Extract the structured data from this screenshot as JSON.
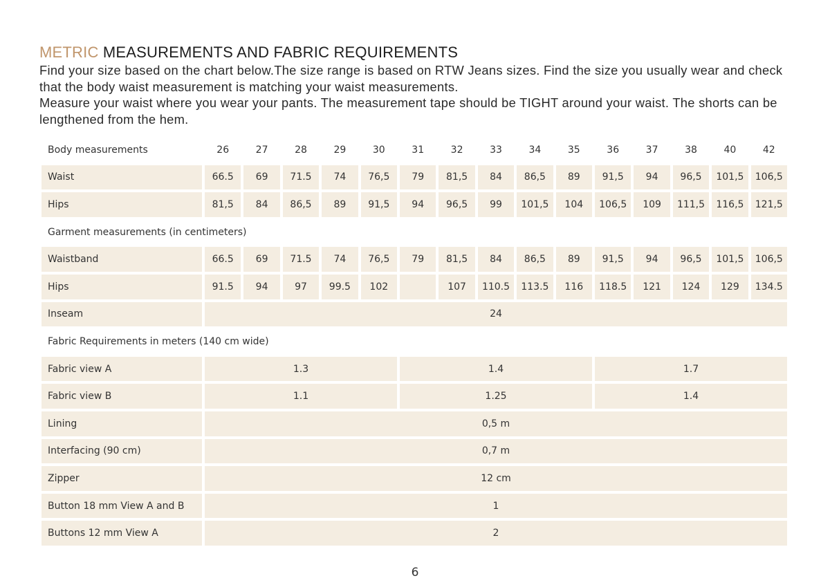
{
  "title": {
    "accent": "METRIC",
    "rest": " MEASUREMENTS AND FABRIC REQUIREMENTS"
  },
  "intro": [
    "Find your size based on the chart below.The size range is based on RTW Jeans sizes. Find the size you usually wear and check that the body waist measurement is matching your waist measurements.",
    "Measure your waist where you wear your pants. The measurement tape should be TIGHT around your waist. The shorts can be lengthened from the hem."
  ],
  "header": {
    "label": "Body measurements",
    "sizes": [
      "26",
      "27",
      "28",
      "29",
      "30",
      "31",
      "32",
      "33",
      "34",
      "35",
      "36",
      "37",
      "38",
      "40",
      "42"
    ]
  },
  "body_rows": [
    {
      "label": "Waist",
      "values": [
        "66.5",
        "69",
        "71.5",
        "74",
        "76,5",
        "79",
        "81,5",
        "84",
        "86,5",
        "89",
        "91,5",
        "94",
        "96,5",
        "101,5",
        "106,5"
      ]
    },
    {
      "label": "Hips",
      "values": [
        "81,5",
        "84",
        "86,5",
        "89",
        "91,5",
        "94",
        "96,5",
        "99",
        "101,5",
        "104",
        "106,5",
        "109",
        "111,5",
        "116,5",
        "121,5"
      ]
    }
  ],
  "garment_section": "Garment measurements (in centimeters)",
  "garment_rows": [
    {
      "label": "Waistband",
      "values": [
        "66.5",
        "69",
        "71.5",
        "74",
        "76,5",
        "79",
        "81,5",
        "84",
        "86,5",
        "89",
        "91,5",
        "94",
        "96,5",
        "101,5",
        "106,5"
      ]
    },
    {
      "label": "Hips",
      "values": [
        "91.5",
        "94",
        "97",
        "99.5",
        "102",
        "",
        "107",
        "110.5",
        "113.5",
        "116",
        "118.5",
        "121",
        "124",
        "129",
        "134.5"
      ]
    }
  ],
  "inseam": {
    "label": "Inseam",
    "value": "24"
  },
  "fabric_section": "Fabric Requirements in meters (140 cm wide)",
  "fabric_rows": [
    {
      "label": "Fabric view A",
      "values": [
        "1.3",
        "1.4",
        "1.7"
      ]
    },
    {
      "label": "Fabric view B",
      "values": [
        "1.1",
        "1.25",
        "1.4"
      ]
    }
  ],
  "notion_rows": [
    {
      "label": "Lining",
      "value": "0,5 m"
    },
    {
      "label": "Interfacing (90 cm)",
      "value": "0,7 m"
    },
    {
      "label": "Zipper",
      "value": "12 cm"
    },
    {
      "label": "Button 18 mm View A and B",
      "value": "1"
    },
    {
      "label": "Buttons 12 mm View A",
      "value": "2"
    }
  ],
  "page_number": "6",
  "colors": {
    "accent": "#c0956b",
    "cell": "#f4ede1"
  }
}
